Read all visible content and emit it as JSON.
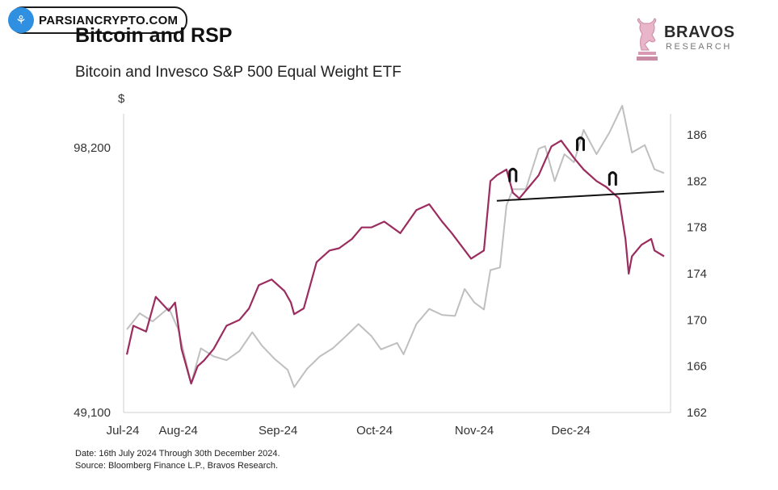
{
  "watermark": {
    "text": "PARSIANCRYPTO.COM"
  },
  "header": {
    "title": "Bitcoin and RSP",
    "subtitle": "Bitcoin and Invesco S&P 500 Equal Weight ETF"
  },
  "brand": {
    "name": "BRAVOS",
    "tagline": "RESEARCH"
  },
  "footer": {
    "date_note": "Date: 16th July 2024 Through 30th December 2024.",
    "source_note": "Source: Bloomberg Finance L.P., Bravos Research."
  },
  "chart_data": {
    "type": "line",
    "title": "Bitcoin and RSP",
    "subtitle": "Bitcoin and Invesco S&P 500 Equal Weight ETF",
    "left_axis": {
      "unit_label": "$",
      "range": [
        49100,
        98200
      ],
      "tick_labels": [
        "98,200",
        "49,100"
      ]
    },
    "right_axis": {
      "range": [
        162,
        186
      ],
      "ticks": [
        162,
        166,
        170,
        174,
        178,
        182,
        186
      ]
    },
    "x_ticks": [
      "Jul-24",
      "Aug-24",
      "Sep-24",
      "Oct-24",
      "Nov-24",
      "Dec-24"
    ],
    "x_tick_dates": [
      "2024-07-01",
      "2024-08-01",
      "2024-09-01",
      "2024-10-01",
      "2024-11-01",
      "2024-12-01"
    ],
    "x_range": [
      "2024-07-16",
      "2024-12-30"
    ],
    "grid": false,
    "colors": {
      "bitcoin": "#bfbfbf",
      "rsp": "#9b2c5f",
      "annotation": "#111111"
    },
    "series": [
      {
        "axis": "left",
        "color": "#bfbfbf",
        "points": [
          [
            "2024-07-16",
            64500
          ],
          [
            "2024-07-20",
            67500
          ],
          [
            "2024-07-24",
            66000
          ],
          [
            "2024-07-29",
            68500
          ],
          [
            "2024-08-01",
            64500
          ],
          [
            "2024-08-05",
            54500
          ],
          [
            "2024-08-08",
            61000
          ],
          [
            "2024-08-12",
            59500
          ],
          [
            "2024-08-16",
            58800
          ],
          [
            "2024-08-20",
            60500
          ],
          [
            "2024-08-24",
            64000
          ],
          [
            "2024-08-27",
            61500
          ],
          [
            "2024-08-31",
            59000
          ],
          [
            "2024-09-04",
            57000
          ],
          [
            "2024-09-06",
            53800
          ],
          [
            "2024-09-10",
            57200
          ],
          [
            "2024-09-14",
            59500
          ],
          [
            "2024-09-18",
            61000
          ],
          [
            "2024-09-22",
            63200
          ],
          [
            "2024-09-26",
            65500
          ],
          [
            "2024-09-30",
            63300
          ],
          [
            "2024-10-03",
            60800
          ],
          [
            "2024-10-08",
            62000
          ],
          [
            "2024-10-10",
            59900
          ],
          [
            "2024-10-14",
            65500
          ],
          [
            "2024-10-18",
            68300
          ],
          [
            "2024-10-22",
            67200
          ],
          [
            "2024-10-26",
            67000
          ],
          [
            "2024-10-29",
            72000
          ],
          [
            "2024-11-01",
            69500
          ],
          [
            "2024-11-04",
            68200
          ],
          [
            "2024-11-06",
            75500
          ],
          [
            "2024-11-09",
            76000
          ],
          [
            "2024-11-11",
            87500
          ],
          [
            "2024-11-13",
            90500
          ],
          [
            "2024-11-17",
            90500
          ],
          [
            "2024-11-21",
            98000
          ],
          [
            "2024-11-23",
            98500
          ],
          [
            "2024-11-26",
            92000
          ],
          [
            "2024-11-29",
            97000
          ],
          [
            "2024-12-02",
            95500
          ],
          [
            "2024-12-05",
            101500
          ],
          [
            "2024-12-09",
            97000
          ],
          [
            "2024-12-13",
            101000
          ],
          [
            "2024-12-17",
            106000
          ],
          [
            "2024-12-20",
            97300
          ],
          [
            "2024-12-24",
            98700
          ],
          [
            "2024-12-27",
            94200
          ],
          [
            "2024-12-30",
            93500
          ]
        ]
      },
      {
        "axis": "right",
        "color": "#9b2c5f",
        "points": [
          [
            "2024-07-16",
            167.0
          ],
          [
            "2024-07-18",
            169.5
          ],
          [
            "2024-07-22",
            169.0
          ],
          [
            "2024-07-25",
            172.0
          ],
          [
            "2024-07-29",
            170.8
          ],
          [
            "2024-07-31",
            171.5
          ],
          [
            "2024-08-02",
            167.5
          ],
          [
            "2024-08-05",
            164.5
          ],
          [
            "2024-08-07",
            166.0
          ],
          [
            "2024-08-09",
            166.5
          ],
          [
            "2024-08-12",
            167.5
          ],
          [
            "2024-08-16",
            169.5
          ],
          [
            "2024-08-20",
            170.0
          ],
          [
            "2024-08-23",
            171.0
          ],
          [
            "2024-08-26",
            173.0
          ],
          [
            "2024-08-30",
            173.5
          ],
          [
            "2024-09-03",
            172.5
          ],
          [
            "2024-09-05",
            171.5
          ],
          [
            "2024-09-06",
            170.5
          ],
          [
            "2024-09-09",
            171.0
          ],
          [
            "2024-09-13",
            175.0
          ],
          [
            "2024-09-17",
            176.0
          ],
          [
            "2024-09-20",
            176.2
          ],
          [
            "2024-09-24",
            177.0
          ],
          [
            "2024-09-27",
            178.0
          ],
          [
            "2024-09-30",
            178.0
          ],
          [
            "2024-10-04",
            178.5
          ],
          [
            "2024-10-09",
            177.5
          ],
          [
            "2024-10-14",
            179.5
          ],
          [
            "2024-10-18",
            180.0
          ],
          [
            "2024-10-22",
            178.5
          ],
          [
            "2024-10-25",
            177.5
          ],
          [
            "2024-10-31",
            175.3
          ],
          [
            "2024-11-04",
            176.0
          ],
          [
            "2024-11-06",
            182.0
          ],
          [
            "2024-11-08",
            182.5
          ],
          [
            "2024-11-11",
            183.0
          ],
          [
            "2024-11-13",
            181.0
          ],
          [
            "2024-11-15",
            180.5
          ],
          [
            "2024-11-18",
            181.5
          ],
          [
            "2024-11-21",
            182.5
          ],
          [
            "2024-11-25",
            185.0
          ],
          [
            "2024-11-28",
            185.5
          ],
          [
            "2024-12-02",
            184.0
          ],
          [
            "2024-12-05",
            183.0
          ],
          [
            "2024-12-09",
            182.0
          ],
          [
            "2024-12-12",
            181.5
          ],
          [
            "2024-12-16",
            180.5
          ],
          [
            "2024-12-18",
            177.0
          ],
          [
            "2024-12-19",
            174.0
          ],
          [
            "2024-12-20",
            175.5
          ],
          [
            "2024-12-23",
            176.5
          ],
          [
            "2024-12-26",
            177.0
          ],
          [
            "2024-12-27",
            176.0
          ],
          [
            "2024-12-30",
            175.5
          ]
        ]
      }
    ],
    "annotations": {
      "neckline": {
        "axis": "right",
        "from": [
          "2024-11-08",
          180.3
        ],
        "to": [
          "2024-12-30",
          181.1
        ]
      },
      "peak_markers": [
        {
          "date": "2024-11-13",
          "value": 182.7
        },
        {
          "date": "2024-12-04",
          "value": 185.4
        },
        {
          "date": "2024-12-14",
          "value": 182.4
        }
      ]
    }
  }
}
